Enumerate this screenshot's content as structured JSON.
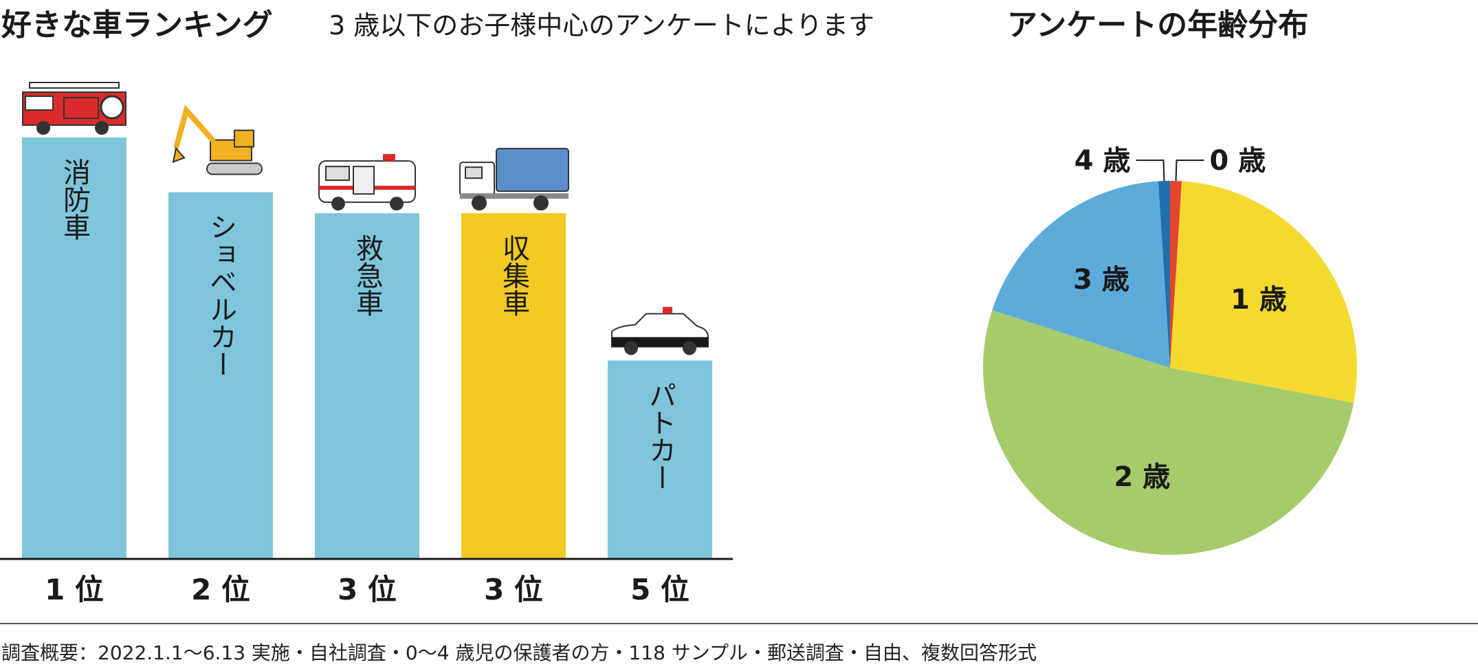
{
  "header": {
    "title": "好きな車ランキング",
    "subtitle": "3 歳以下のお子様中心のアンケートによります"
  },
  "pie_header": {
    "title": "アンケートの年齢分布"
  },
  "footer": {
    "note": "調査概要：2022.1.1〜6.13 実施・自社調査・0〜4 歳児の保護者の方・118 サンプル・郵送調査・自由、複数回答形式"
  },
  "colors": {
    "bar_blue": "#7ec5db",
    "bar_yellow": "#f2c824",
    "pie_yellow": "#f4da2e",
    "pie_green": "#a5cb6a",
    "pie_blue": "#5dabdb",
    "pie_darkblue": "#2170ad",
    "pie_red": "#e2462e"
  },
  "chart_data": [
    {
      "type": "bar",
      "title": "好きな車ランキング",
      "categories": [
        "消防車",
        "ショベルカー",
        "救急車",
        "収集車",
        "パトカー"
      ],
      "ranks": [
        "1 位",
        "2 位",
        "3 位",
        "3 位",
        "5 位"
      ],
      "values": [
        100,
        87,
        82,
        82,
        47
      ],
      "colors": [
        "#7ec5db",
        "#7ec5db",
        "#7ec5db",
        "#f2c824",
        "#7ec5db"
      ],
      "icons": [
        "fire-truck-icon",
        "excavator-icon",
        "ambulance-icon",
        "garbage-truck-icon",
        "police-car-icon"
      ],
      "xlabel": "",
      "ylabel": "",
      "ylim": [
        0,
        100
      ],
      "grid": false
    },
    {
      "type": "pie",
      "title": "アンケートの年齢分布",
      "labels": [
        "0 歳",
        "1 歳",
        "2 歳",
        "3 歳",
        "4 歳"
      ],
      "values": [
        1,
        27,
        52,
        19,
        1
      ],
      "colors": [
        "#e2462e",
        "#f4da2e",
        "#a5cb6a",
        "#5dabdb",
        "#2170ad"
      ],
      "legend": "none"
    }
  ]
}
